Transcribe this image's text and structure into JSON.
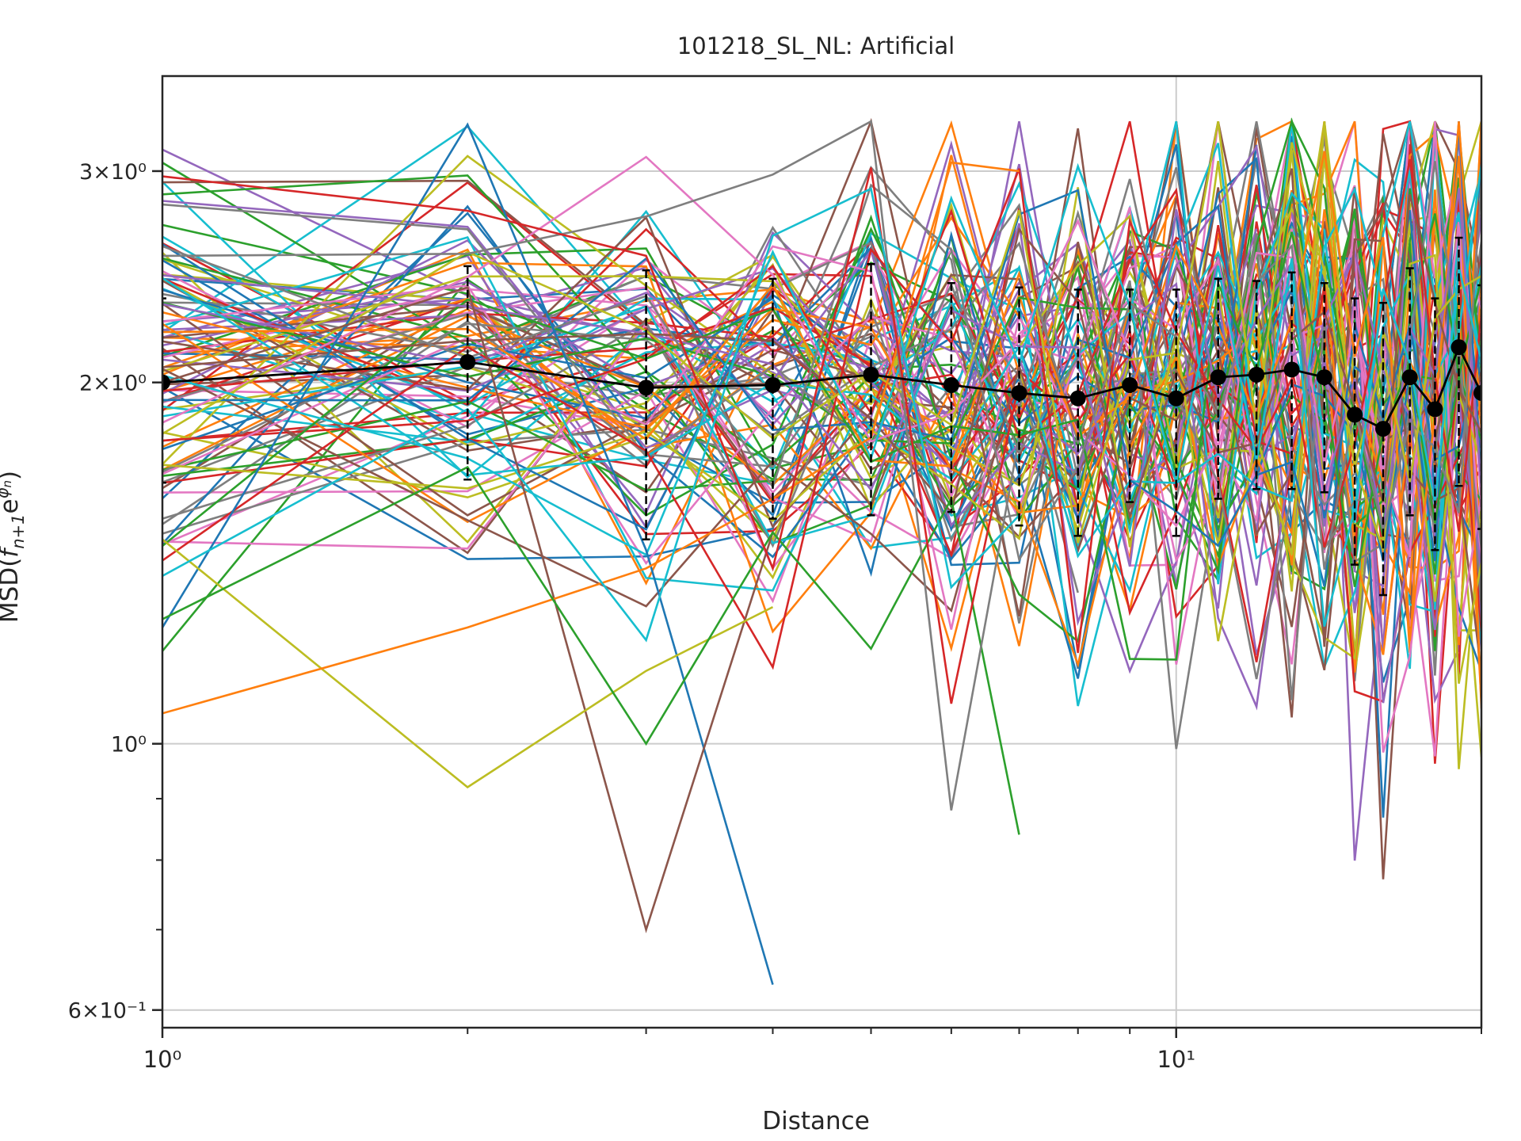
{
  "chart_data": {
    "type": "line",
    "title": "101218_SL_NL: Artificial",
    "xlabel": "Distance",
    "ylabel": "MSD(f_{n+1} e^{φ_n})",
    "xscale": "log",
    "yscale": "log",
    "xlim": [
      1,
      20
    ],
    "ylim": [
      0.58,
      3.6
    ],
    "grid": true,
    "x_ticks": [
      {
        "value": 1,
        "label": "10⁰"
      },
      {
        "value": 10,
        "label": "10¹"
      }
    ],
    "y_ticks": [
      {
        "value": 0.6,
        "label": "6×10⁻¹"
      },
      {
        "value": 1,
        "label": "10⁰"
      },
      {
        "value": 2,
        "label": "2×10⁰"
      },
      {
        "value": 3,
        "label": "3×10⁰"
      }
    ],
    "x_minor_ticks": [
      2,
      3,
      4,
      5,
      6,
      7,
      8,
      9,
      20
    ],
    "y_minor_ticks": [
      0.7,
      0.8,
      0.9
    ],
    "colors": [
      "#1f77b4",
      "#ff7f0e",
      "#2ca02c",
      "#d62728",
      "#9467bd",
      "#8c564b",
      "#e377c2",
      "#7f7f7f",
      "#bcbd22",
      "#17becf"
    ],
    "num_individual_traces": 100,
    "mean_series": {
      "name": "mean",
      "color": "#000000",
      "x": [
        1,
        2,
        3,
        4,
        5,
        6,
        7,
        8,
        9,
        10,
        11,
        12,
        13,
        14,
        15,
        16,
        17,
        18,
        19,
        20
      ],
      "y": [
        2.0,
        2.08,
        1.98,
        1.99,
        2.03,
        1.99,
        1.96,
        1.94,
        1.99,
        1.94,
        2.02,
        2.03,
        2.05,
        2.02,
        1.88,
        1.83,
        2.02,
        1.9,
        2.14,
        1.96
      ],
      "err": [
        0.35,
        0.42,
        0.5,
        0.45,
        0.48,
        0.43,
        0.44,
        0.45,
        0.4,
        0.45,
        0.42,
        0.4,
        0.42,
        0.4,
        0.47,
        0.5,
        0.47,
        0.45,
        0.5,
        0.45
      ]
    },
    "highlighted_traces": [
      {
        "color": "#1f77b4",
        "x": [
          1,
          2,
          3,
          4
        ],
        "y": [
          1.25,
          3.28,
          1.45,
          0.63
        ]
      },
      {
        "color": "#8c564b",
        "x": [
          1,
          2,
          3,
          4
        ],
        "y": [
          2.0,
          2.4,
          0.7,
          1.5
        ]
      },
      {
        "color": "#bcbd22",
        "x": [
          1,
          2,
          3,
          4
        ],
        "y": [
          1.48,
          0.92,
          1.15,
          1.3
        ]
      },
      {
        "color": "#ff7f0e",
        "x": [
          1,
          2,
          3,
          4,
          5,
          6,
          7
        ],
        "y": [
          1.06,
          1.25,
          1.4,
          1.6,
          1.8,
          3.05,
          3.0
        ]
      },
      {
        "color": "#2ca02c",
        "x": [
          1,
          2,
          3,
          4,
          5,
          6,
          7
        ],
        "y": [
          1.27,
          1.7,
          1.0,
          1.5,
          1.2,
          1.6,
          0.84
        ]
      },
      {
        "color": "#7f7f7f",
        "x": [
          1,
          2,
          3,
          4,
          5,
          6,
          7
        ],
        "y": [
          2.55,
          2.56,
          2.75,
          2.98,
          3.3,
          0.88,
          1.8
        ]
      },
      {
        "color": "#d62728",
        "x": [
          1,
          2,
          3,
          4,
          5,
          6,
          7
        ],
        "y": [
          2.97,
          2.78,
          2.55,
          1.4,
          3.02,
          1.08,
          2.0
        ]
      },
      {
        "color": "#17becf",
        "x": [
          1,
          2,
          3,
          4,
          5,
          6,
          7
        ],
        "y": [
          1.38,
          1.9,
          1.22,
          2.65,
          2.9,
          1.35,
          1.55
        ]
      }
    ]
  }
}
